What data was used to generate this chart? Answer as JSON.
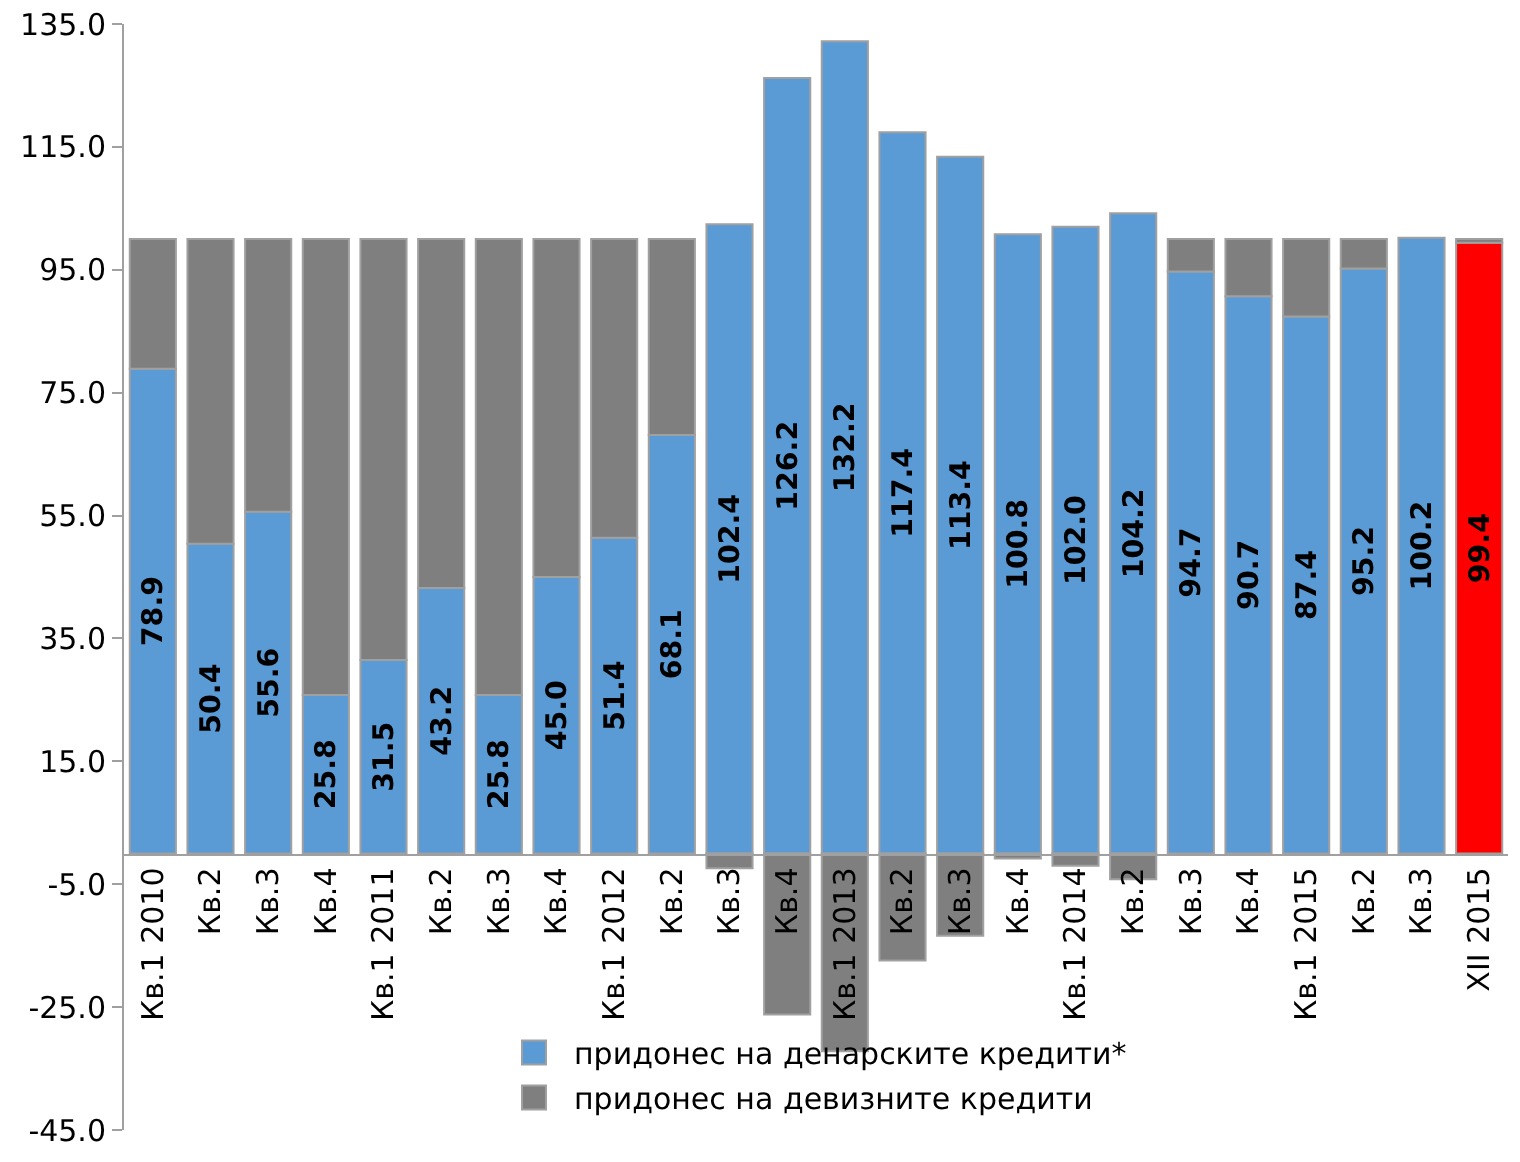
{
  "chart_data": {
    "type": "bar",
    "stacked": true,
    "categories": [
      "Кв.1 2010",
      "Кв.2",
      "Кв.3",
      "Кв.4",
      "Кв.1 2011",
      "Кв.2",
      "Кв.3",
      "Кв.4",
      "Кв.1 2012",
      "Кв.2",
      "Кв.3",
      "Кв.4",
      "Кв.1 2013",
      "Кв.2",
      "Кв.3",
      "Кв.4",
      "Кв.1 2014",
      "Кв.2",
      "Кв.3",
      "Кв.4",
      "Кв.1 2015",
      "Кв.2",
      "Кв.3",
      "XII 2015"
    ],
    "series": [
      {
        "name": "придонес на денарските кредити*",
        "colors": [
          "#5b9bd5",
          "#5b9bd5",
          "#5b9bd5",
          "#5b9bd5",
          "#5b9bd5",
          "#5b9bd5",
          "#5b9bd5",
          "#5b9bd5",
          "#5b9bd5",
          "#5b9bd5",
          "#5b9bd5",
          "#5b9bd5",
          "#5b9bd5",
          "#5b9bd5",
          "#5b9bd5",
          "#5b9bd5",
          "#5b9bd5",
          "#5b9bd5",
          "#5b9bd5",
          "#5b9bd5",
          "#5b9bd5",
          "#5b9bd5",
          "#5b9bd5",
          "#ff0000"
        ],
        "values": [
          78.9,
          50.4,
          55.6,
          25.8,
          31.5,
          43.2,
          25.8,
          45.0,
          51.4,
          68.1,
          102.4,
          126.2,
          132.2,
          117.4,
          113.4,
          100.8,
          102.0,
          104.2,
          94.7,
          90.7,
          87.4,
          95.2,
          100.2,
          99.4
        ],
        "value_labels": [
          "78.9",
          "50.4",
          "55.6",
          "25.8",
          "31.5",
          "43.2",
          "25.8",
          "45.0",
          "51.4",
          "68.1",
          "102.4",
          "126.2",
          "132.2",
          "117.4",
          "113.4",
          "100.8",
          "102.0",
          "104.2",
          "94.7",
          "90.7",
          "87.4",
          "95.2",
          "100.2",
          "99.4"
        ]
      },
      {
        "name": "придонес на девизните кредити",
        "color": "#7f7f7f",
        "values": [
          21.1,
          49.6,
          44.4,
          74.2,
          68.5,
          56.8,
          74.2,
          55.0,
          48.6,
          31.9,
          -2.4,
          -26.2,
          -32.2,
          -17.4,
          -13.4,
          -0.8,
          -2.0,
          -4.2,
          5.3,
          9.3,
          12.6,
          4.8,
          null,
          0.6
        ]
      }
    ],
    "ylim": [
      -45,
      135
    ],
    "yticks": [
      {
        "value": -45,
        "label": "-45.0"
      },
      {
        "value": -25,
        "label": "-25.0"
      },
      {
        "value": -5,
        "label": "-5.0"
      },
      {
        "value": 15,
        "label": "15.0"
      },
      {
        "value": 35,
        "label": "35.0"
      },
      {
        "value": 55,
        "label": "55.0"
      },
      {
        "value": 75,
        "label": "75.0"
      },
      {
        "value": 95,
        "label": "95.0"
      },
      {
        "value": 115,
        "label": "115.0"
      },
      {
        "value": 135,
        "label": "135.0"
      }
    ],
    "grid": false,
    "legend": "bottom"
  }
}
